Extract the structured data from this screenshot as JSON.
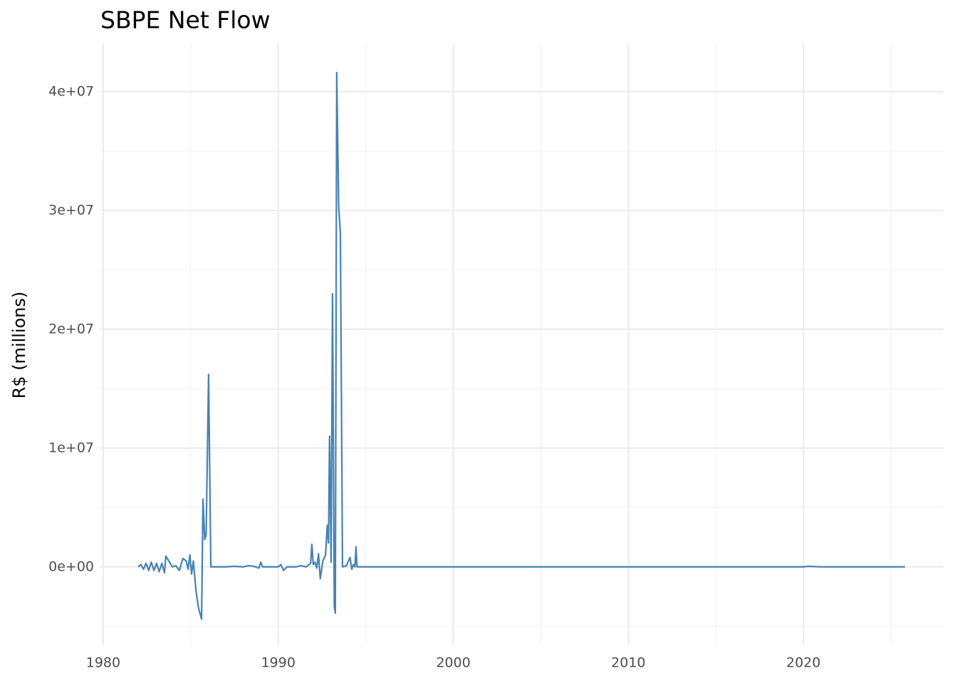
{
  "chart_data": {
    "type": "line",
    "title": "SBPE Net Flow",
    "y_label": "R$ (millions)",
    "x": [
      1982.0,
      1982.15,
      1982.3,
      1982.45,
      1982.6,
      1982.75,
      1982.9,
      1983.05,
      1983.2,
      1983.35,
      1983.5,
      1983.58,
      1983.75,
      1983.95,
      1984.15,
      1984.35,
      1984.55,
      1984.75,
      1984.85,
      1984.95,
      1985.05,
      1985.15,
      1985.3,
      1985.45,
      1985.62,
      1985.7,
      1985.8,
      1985.88,
      1986.02,
      1986.15,
      1987.0,
      1987.5,
      1988.0,
      1988.3,
      1988.6,
      1988.9,
      1989.0,
      1989.1,
      1990.0,
      1990.15,
      1990.3,
      1990.5,
      1991.0,
      1991.3,
      1991.6,
      1991.85,
      1991.92,
      1992.0,
      1992.1,
      1992.2,
      1992.3,
      1992.4,
      1992.55,
      1992.7,
      1992.8,
      1992.87,
      1992.93,
      1993.02,
      1993.1,
      1993.2,
      1993.26,
      1993.34,
      1993.45,
      1993.55,
      1993.67,
      1993.9,
      1994.1,
      1994.2,
      1994.3,
      1994.38,
      1994.44,
      1994.5,
      2000.0,
      2010.0,
      2020.0,
      2020.3,
      2021.0,
      2025.8
    ],
    "series": [
      {
        "color": "#4682b4",
        "values": [
          0,
          200000,
          -200000,
          300000,
          -300000,
          400000,
          -300000,
          300000,
          -400000,
          300000,
          -500000,
          900000,
          500000,
          0,
          100000,
          -300000,
          700000,
          500000,
          -200000,
          1000000,
          -600000,
          500000,
          -2000000,
          -3500000,
          -4400000,
          5700000,
          2300000,
          2700000,
          16200000,
          0,
          0,
          50000,
          0,
          100000,
          50000,
          -100000,
          400000,
          0,
          0,
          200000,
          -300000,
          0,
          0,
          100000,
          0,
          300000,
          1900000,
          200000,
          400000,
          -100000,
          1100000,
          -1000000,
          500000,
          1000000,
          3500000,
          2000000,
          11000000,
          400000,
          23000000,
          -3300000,
          -3900000,
          41600000,
          30400000,
          28000000,
          0,
          100000,
          800000,
          -200000,
          200000,
          0,
          1700000,
          0,
          0,
          0,
          0,
          50000,
          0,
          0
        ]
      }
    ],
    "xlim": [
      1979.8,
      2028.0
    ],
    "ylim": [
      -6600000,
      44000000
    ],
    "xticks": [
      1980,
      1990,
      2000,
      2010,
      2020
    ],
    "minor_xticks": [
      1985,
      1995,
      2005,
      2015,
      2025
    ],
    "yticks": [
      {
        "value": 0,
        "label": "0e+00"
      },
      {
        "value": 10000000,
        "label": "1e+07"
      },
      {
        "value": 20000000,
        "label": "2e+07"
      },
      {
        "value": 30000000,
        "label": "3e+07"
      },
      {
        "value": 40000000,
        "label": "4e+07"
      }
    ],
    "minor_yticks": [
      -5000000,
      5000000,
      15000000,
      25000000,
      35000000
    ],
    "grid": true
  }
}
